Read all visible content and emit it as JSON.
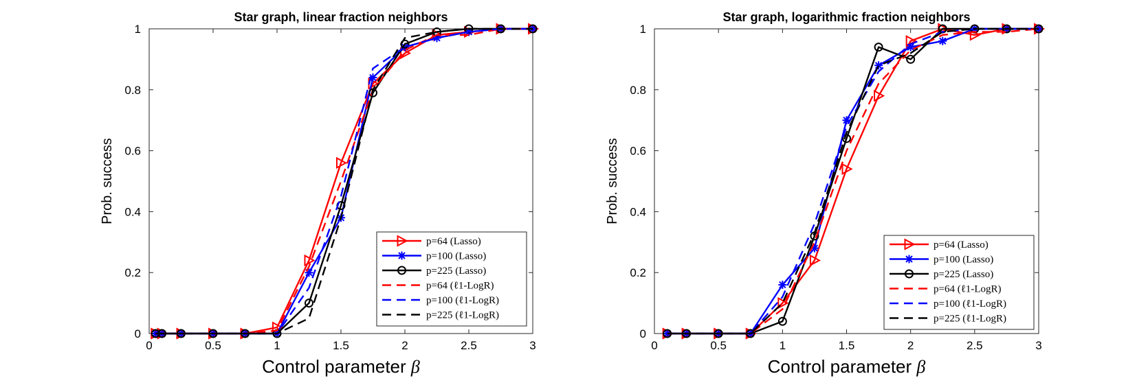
{
  "chart_data": [
    {
      "type": "line",
      "title": "Star graph, linear fraction neighbors",
      "xlabel": "Control parameter",
      "xlabel_symbol": "β",
      "ylabel": "Prob. success",
      "xlim": [
        0,
        3
      ],
      "ylim": [
        0,
        1
      ],
      "xticks": [
        "0",
        "0.5",
        "1",
        "1.5",
        "2",
        "2.5",
        "3"
      ],
      "yticks": [
        "0",
        "0.2",
        "0.4",
        "0.6",
        "0.8",
        "1"
      ],
      "legend_position": "bottom-right",
      "series": [
        {
          "name": "p=64 (Lasso)",
          "color": "#ff0000",
          "style": "solid",
          "marker": "triangle-right",
          "x": [
            0.05,
            0.1,
            0.25,
            0.5,
            0.75,
            1.0,
            1.25,
            1.5,
            1.75,
            2.0,
            2.25,
            2.5,
            2.75,
            3.0
          ],
          "y": [
            0,
            0,
            0,
            0,
            0,
            0.02,
            0.24,
            0.56,
            0.82,
            0.92,
            0.98,
            0.99,
            1.0,
            1.0
          ]
        },
        {
          "name": "p=100 (Lasso)",
          "color": "#0000ff",
          "style": "solid",
          "marker": "star",
          "x": [
            0.05,
            0.1,
            0.25,
            0.5,
            0.75,
            1.0,
            1.25,
            1.5,
            1.75,
            2.0,
            2.25,
            2.5,
            2.75,
            3.0
          ],
          "y": [
            0,
            0,
            0,
            0,
            0,
            0,
            0.2,
            0.38,
            0.84,
            0.94,
            0.97,
            0.99,
            1.0,
            1.0
          ]
        },
        {
          "name": "p=225 (Lasso)",
          "color": "#000000",
          "style": "solid",
          "marker": "circle",
          "x": [
            0.05,
            0.1,
            0.25,
            0.5,
            0.75,
            1.0,
            1.25,
            1.5,
            1.75,
            2.0,
            2.25,
            2.5,
            2.75,
            3.0
          ],
          "y": [
            0,
            0,
            0,
            0,
            0,
            0,
            0.1,
            0.42,
            0.79,
            0.95,
            0.99,
            1.0,
            1.0,
            1.0
          ]
        },
        {
          "name": "p=64 (ℓ1-LogR)",
          "color": "#ff0000",
          "style": "dashed",
          "marker": "none",
          "x": [
            0.05,
            0.1,
            0.25,
            0.5,
            0.75,
            1.0,
            1.25,
            1.5,
            1.75,
            2.0,
            2.25,
            2.5,
            2.75,
            3.0
          ],
          "y": [
            0,
            0,
            0,
            0,
            0,
            0.01,
            0.22,
            0.5,
            0.8,
            0.93,
            0.98,
            0.98,
            1.0,
            1.0
          ]
        },
        {
          "name": "p=100 (ℓ1-LogR)",
          "color": "#0000ff",
          "style": "dashed",
          "marker": "none",
          "x": [
            0.05,
            0.1,
            0.25,
            0.5,
            0.75,
            1.0,
            1.25,
            1.5,
            1.75,
            2.0,
            2.25,
            2.5,
            2.75,
            3.0
          ],
          "y": [
            0,
            0,
            0,
            0,
            0,
            0,
            0.15,
            0.45,
            0.87,
            0.94,
            0.97,
            0.99,
            1.0,
            1.0
          ]
        },
        {
          "name": "p=225 (ℓ1-LogR)",
          "color": "#000000",
          "style": "dashed",
          "marker": "none",
          "x": [
            0.05,
            0.1,
            0.25,
            0.5,
            0.75,
            1.0,
            1.25,
            1.5,
            1.75,
            2.0,
            2.25,
            2.5,
            2.75,
            3.0
          ],
          "y": [
            0,
            0,
            0,
            0,
            0,
            0,
            0.05,
            0.38,
            0.8,
            0.97,
            0.99,
            1.0,
            1.0,
            1.0
          ]
        }
      ]
    },
    {
      "type": "line",
      "title": "Star graph, logarithmic fraction neighbors",
      "xlabel": "Control parameter",
      "xlabel_symbol": "β",
      "ylabel": "Prob. success",
      "xlim": [
        0,
        3
      ],
      "ylim": [
        0,
        1
      ],
      "xticks": [
        "0",
        "0.5",
        "1",
        "1.5",
        "2",
        "2.5",
        "3"
      ],
      "yticks": [
        "0",
        "0.2",
        "0.4",
        "0.6",
        "0.8",
        "1"
      ],
      "legend_position": "bottom-right",
      "series": [
        {
          "name": "p=64 (Lasso)",
          "color": "#ff0000",
          "style": "solid",
          "marker": "triangle-right",
          "x": [
            0.1,
            0.25,
            0.5,
            0.75,
            1.0,
            1.25,
            1.5,
            1.75,
            2.0,
            2.25,
            2.5,
            2.75,
            3.0
          ],
          "y": [
            0,
            0,
            0,
            0,
            0.1,
            0.24,
            0.54,
            0.78,
            0.96,
            1.0,
            0.98,
            1.0,
            1.0
          ]
        },
        {
          "name": "p=100 (Lasso)",
          "color": "#0000ff",
          "style": "solid",
          "marker": "star",
          "x": [
            0.1,
            0.25,
            0.5,
            0.75,
            1.0,
            1.25,
            1.5,
            1.75,
            2.0,
            2.25,
            2.5,
            2.75,
            3.0
          ],
          "y": [
            0,
            0,
            0,
            0,
            0.16,
            0.28,
            0.7,
            0.88,
            0.94,
            0.96,
            1.0,
            1.0,
            1.0
          ]
        },
        {
          "name": "p=225 (Lasso)",
          "color": "#000000",
          "style": "solid",
          "marker": "circle",
          "x": [
            0.1,
            0.25,
            0.5,
            0.75,
            1.0,
            1.25,
            1.5,
            1.75,
            2.0,
            2.25,
            2.5,
            2.75,
            3.0
          ],
          "y": [
            0,
            0,
            0,
            0,
            0.04,
            0.32,
            0.64,
            0.94,
            0.9,
            1.0,
            1.0,
            1.0,
            1.0
          ]
        },
        {
          "name": "p=64 (ℓ1-LogR)",
          "color": "#ff0000",
          "style": "dashed",
          "marker": "none",
          "x": [
            0.1,
            0.25,
            0.5,
            0.75,
            1.0,
            1.25,
            1.5,
            1.75,
            2.0,
            2.25,
            2.5,
            2.75,
            3.0
          ],
          "y": [
            0,
            0,
            0,
            0,
            0.08,
            0.3,
            0.6,
            0.82,
            0.93,
            0.98,
            0.99,
            0.99,
            1.0
          ]
        },
        {
          "name": "p=100 (ℓ1-LogR)",
          "color": "#0000ff",
          "style": "dashed",
          "marker": "none",
          "x": [
            0.1,
            0.25,
            0.5,
            0.75,
            1.0,
            1.25,
            1.5,
            1.75,
            2.0,
            2.25,
            2.5,
            2.75,
            3.0
          ],
          "y": [
            0,
            0,
            0,
            0,
            0.12,
            0.36,
            0.68,
            0.86,
            0.95,
            0.99,
            1.0,
            1.0,
            1.0
          ]
        },
        {
          "name": "p=225 (ℓ1-LogR)",
          "color": "#000000",
          "style": "dashed",
          "marker": "none",
          "x": [
            0.1,
            0.25,
            0.5,
            0.75,
            1.0,
            1.25,
            1.5,
            1.75,
            2.0,
            2.25,
            2.5,
            2.75,
            3.0
          ],
          "y": [
            0,
            0,
            0,
            0,
            0.1,
            0.33,
            0.66,
            0.88,
            0.92,
            0.99,
            1.0,
            1.0,
            1.0
          ]
        }
      ]
    }
  ]
}
